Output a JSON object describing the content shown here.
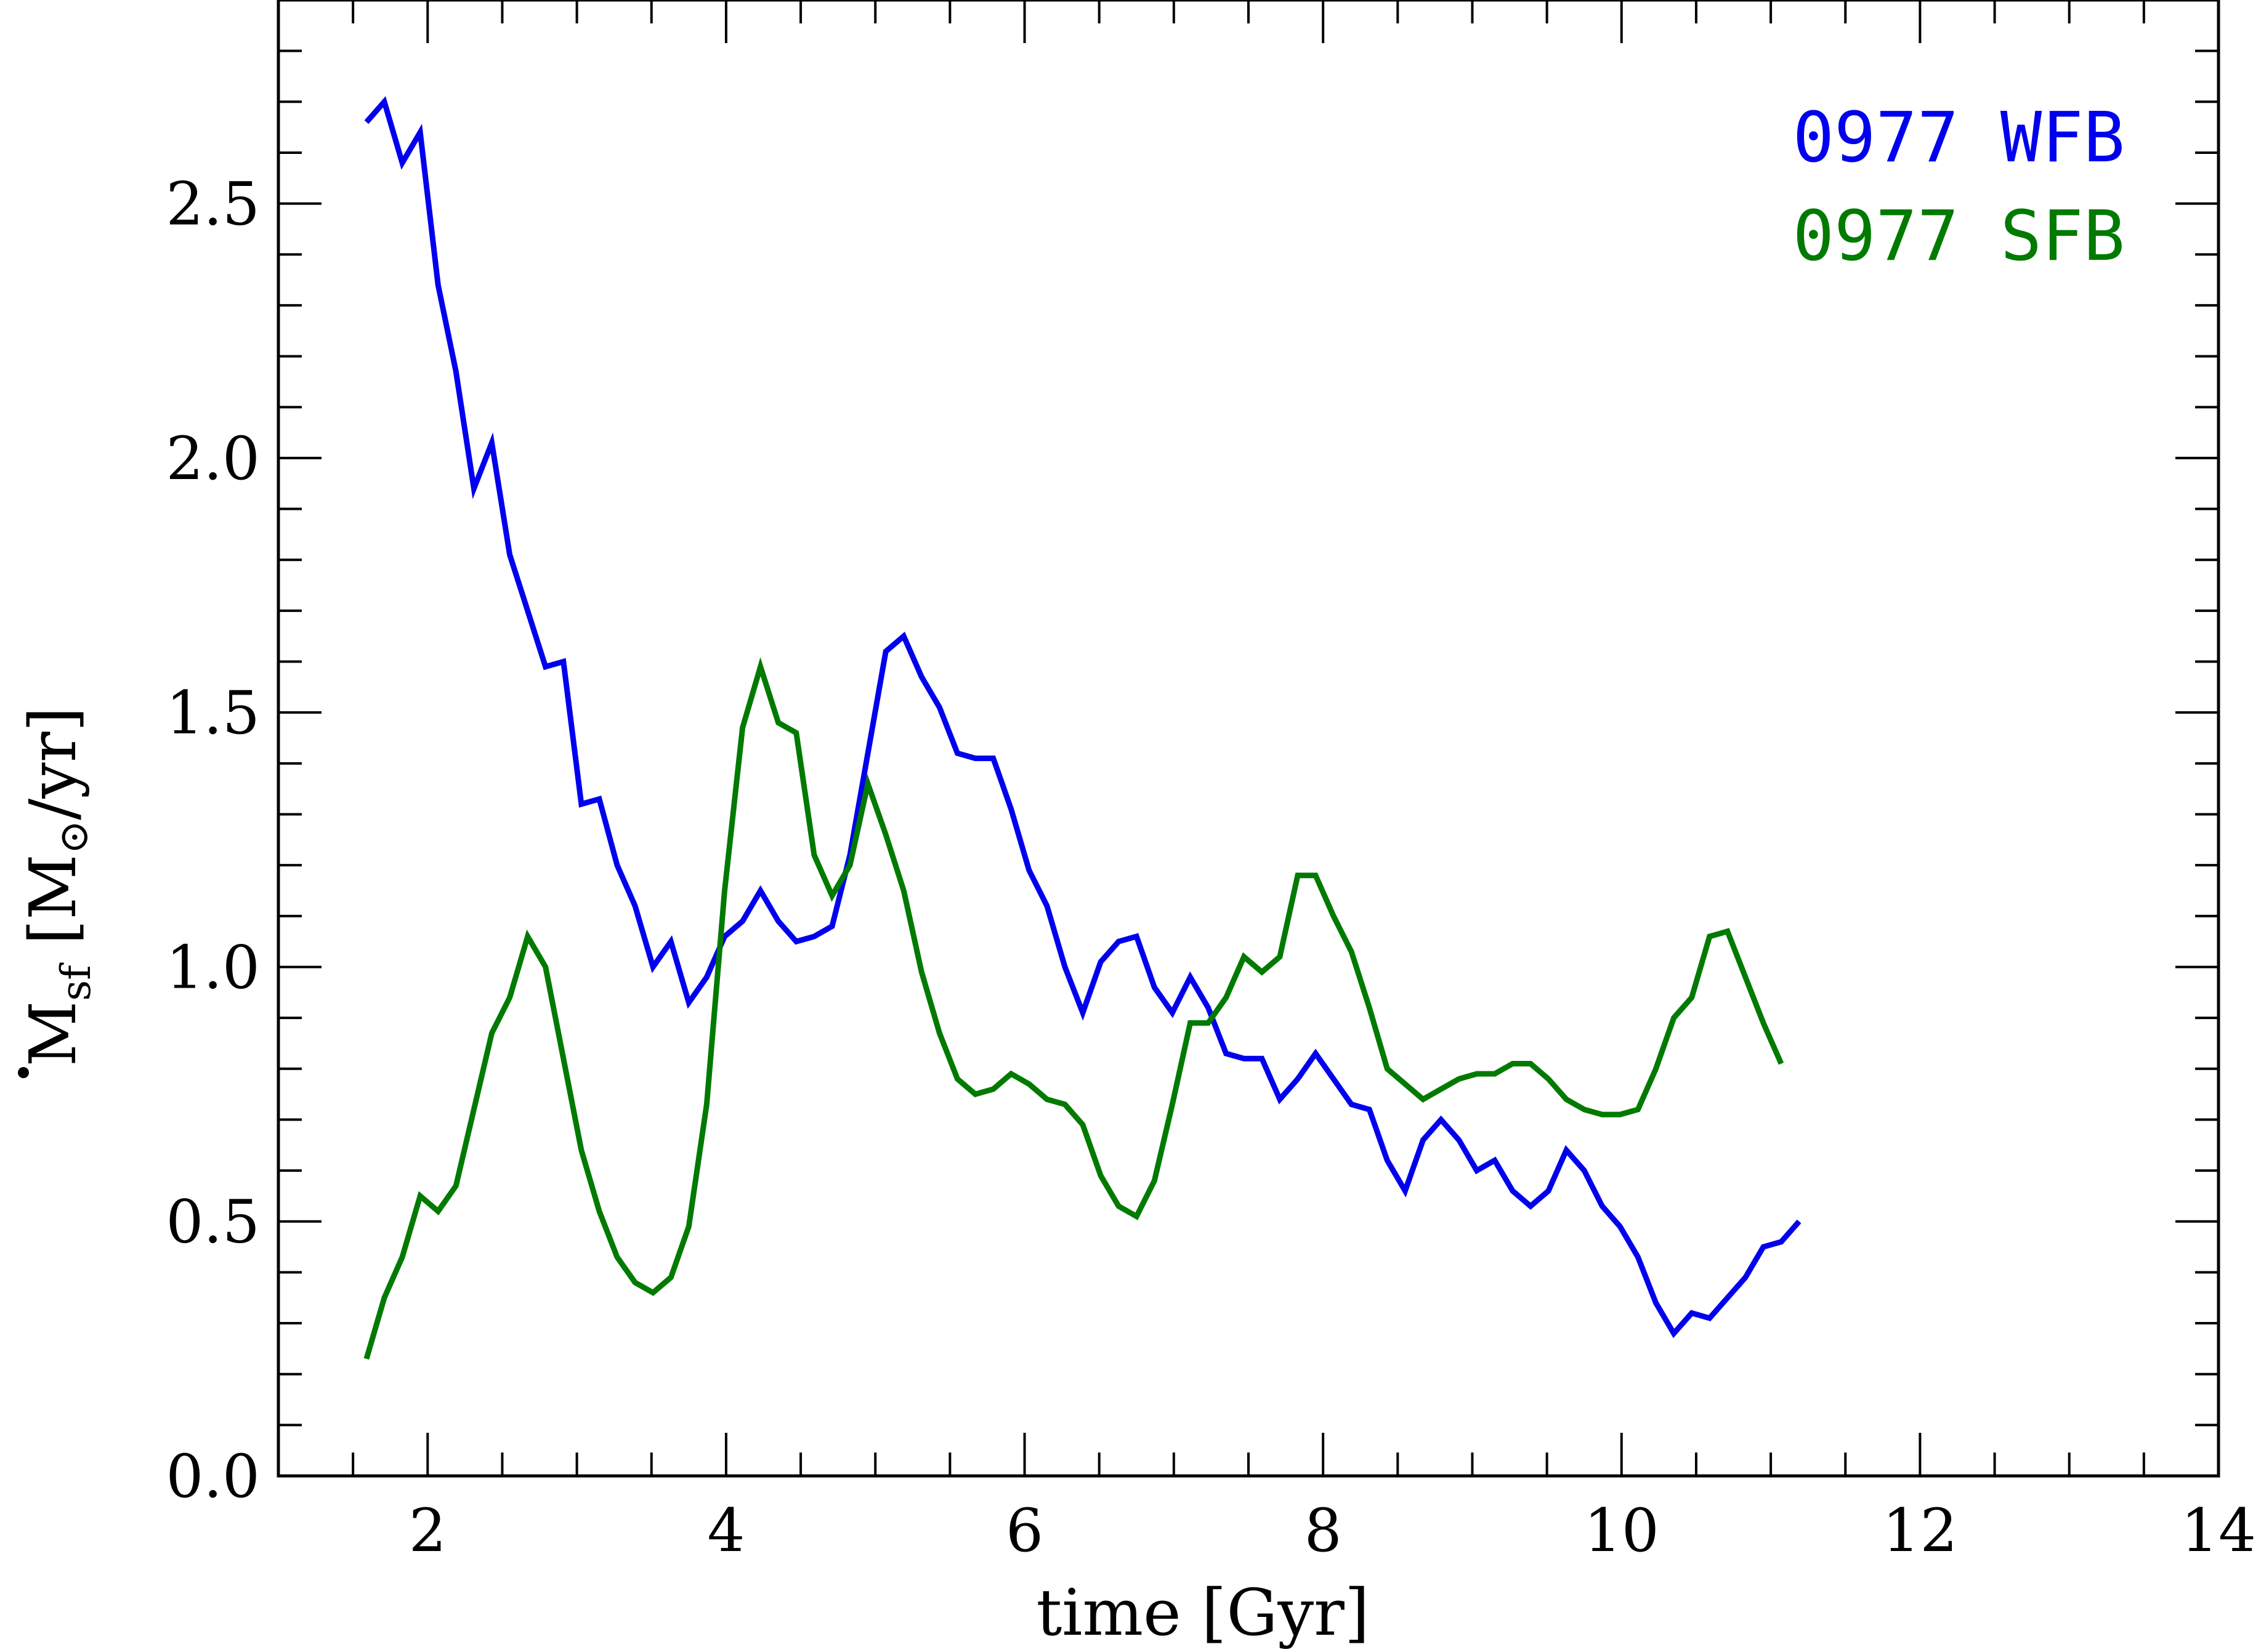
{
  "chart_data": {
    "type": "line",
    "xlabel": "time [Gyr]",
    "ylabel": {
      "symbol": "M",
      "subscript": "sf",
      "unit_open": " [M",
      "sun": "⊙",
      "unit_close": "/yr]"
    },
    "xlim": [
      1,
      14
    ],
    "ylim": [
      0,
      2.9
    ],
    "xticks": [
      2,
      4,
      6,
      8,
      10,
      12,
      14
    ],
    "yticks": [
      0.0,
      0.5,
      1.0,
      1.5,
      2.0,
      2.5
    ],
    "xtick_labels": [
      "2",
      "4",
      "6",
      "8",
      "10",
      "12",
      "14"
    ],
    "ytick_labels": [
      "0.0",
      "0.5",
      "1.0",
      "1.5",
      "2.0",
      "2.5"
    ],
    "x_minor_step": 0.5,
    "y_minor_step": 0.1,
    "grid": false,
    "legend_position": "top-right",
    "series": [
      {
        "name": "0977 WFB",
        "color": "#0000ee",
        "points": [
          [
            1.59,
            2.66
          ],
          [
            1.71,
            2.7
          ],
          [
            1.83,
            2.58
          ],
          [
            1.95,
            2.64
          ],
          [
            2.07,
            2.34
          ],
          [
            2.19,
            2.17
          ],
          [
            2.31,
            1.94
          ],
          [
            2.43,
            2.03
          ],
          [
            2.55,
            1.81
          ],
          [
            2.67,
            1.7
          ],
          [
            2.79,
            1.59
          ],
          [
            2.91,
            1.6
          ],
          [
            3.03,
            1.32
          ],
          [
            3.15,
            1.33
          ],
          [
            3.27,
            1.2
          ],
          [
            3.39,
            1.12
          ],
          [
            3.51,
            1.0
          ],
          [
            3.63,
            1.05
          ],
          [
            3.75,
            0.93
          ],
          [
            3.87,
            0.98
          ],
          [
            3.99,
            1.06
          ],
          [
            4.11,
            1.09
          ],
          [
            4.23,
            1.15
          ],
          [
            4.35,
            1.09
          ],
          [
            4.47,
            1.05
          ],
          [
            4.59,
            1.06
          ],
          [
            4.71,
            1.08
          ],
          [
            4.83,
            1.22
          ],
          [
            4.95,
            1.42
          ],
          [
            5.07,
            1.62
          ],
          [
            5.19,
            1.65
          ],
          [
            5.31,
            1.57
          ],
          [
            5.43,
            1.51
          ],
          [
            5.55,
            1.42
          ],
          [
            5.67,
            1.41
          ],
          [
            5.79,
            1.41
          ],
          [
            5.91,
            1.31
          ],
          [
            6.03,
            1.19
          ],
          [
            6.15,
            1.12
          ],
          [
            6.27,
            1.0
          ],
          [
            6.39,
            0.91
          ],
          [
            6.51,
            1.01
          ],
          [
            6.63,
            1.05
          ],
          [
            6.75,
            1.06
          ],
          [
            6.87,
            0.96
          ],
          [
            6.99,
            0.91
          ],
          [
            7.11,
            0.98
          ],
          [
            7.23,
            0.92
          ],
          [
            7.35,
            0.83
          ],
          [
            7.47,
            0.82
          ],
          [
            7.59,
            0.82
          ],
          [
            7.71,
            0.74
          ],
          [
            7.83,
            0.78
          ],
          [
            7.95,
            0.83
          ],
          [
            8.07,
            0.78
          ],
          [
            8.19,
            0.73
          ],
          [
            8.31,
            0.72
          ],
          [
            8.43,
            0.62
          ],
          [
            8.55,
            0.56
          ],
          [
            8.67,
            0.66
          ],
          [
            8.79,
            0.7
          ],
          [
            8.91,
            0.66
          ],
          [
            9.03,
            0.6
          ],
          [
            9.15,
            0.62
          ],
          [
            9.27,
            0.56
          ],
          [
            9.39,
            0.53
          ],
          [
            9.51,
            0.56
          ],
          [
            9.63,
            0.64
          ],
          [
            9.75,
            0.6
          ],
          [
            9.87,
            0.53
          ],
          [
            9.99,
            0.49
          ],
          [
            10.11,
            0.43
          ],
          [
            10.23,
            0.34
          ],
          [
            10.35,
            0.28
          ],
          [
            10.47,
            0.32
          ],
          [
            10.59,
            0.31
          ],
          [
            10.71,
            0.35
          ],
          [
            10.83,
            0.39
          ],
          [
            10.95,
            0.45
          ],
          [
            11.07,
            0.46
          ],
          [
            11.19,
            0.5
          ]
        ]
      },
      {
        "name": "0977 SFB",
        "color": "#007a00",
        "points": [
          [
            1.59,
            0.23
          ],
          [
            1.71,
            0.35
          ],
          [
            1.83,
            0.43
          ],
          [
            1.95,
            0.55
          ],
          [
            2.07,
            0.52
          ],
          [
            2.19,
            0.57
          ],
          [
            2.31,
            0.72
          ],
          [
            2.43,
            0.87
          ],
          [
            2.55,
            0.94
          ],
          [
            2.67,
            1.06
          ],
          [
            2.79,
            1.0
          ],
          [
            2.91,
            0.82
          ],
          [
            3.03,
            0.64
          ],
          [
            3.15,
            0.52
          ],
          [
            3.27,
            0.43
          ],
          [
            3.39,
            0.38
          ],
          [
            3.51,
            0.36
          ],
          [
            3.63,
            0.39
          ],
          [
            3.75,
            0.49
          ],
          [
            3.87,
            0.73
          ],
          [
            3.99,
            1.15
          ],
          [
            4.11,
            1.47
          ],
          [
            4.23,
            1.59
          ],
          [
            4.35,
            1.48
          ],
          [
            4.47,
            1.46
          ],
          [
            4.59,
            1.22
          ],
          [
            4.71,
            1.14
          ],
          [
            4.83,
            1.2
          ],
          [
            4.95,
            1.36
          ],
          [
            5.07,
            1.26
          ],
          [
            5.19,
            1.15
          ],
          [
            5.31,
            0.99
          ],
          [
            5.43,
            0.87
          ],
          [
            5.55,
            0.78
          ],
          [
            5.67,
            0.75
          ],
          [
            5.79,
            0.76
          ],
          [
            5.91,
            0.79
          ],
          [
            6.03,
            0.77
          ],
          [
            6.15,
            0.74
          ],
          [
            6.27,
            0.73
          ],
          [
            6.39,
            0.69
          ],
          [
            6.51,
            0.59
          ],
          [
            6.63,
            0.53
          ],
          [
            6.75,
            0.51
          ],
          [
            6.87,
            0.58
          ],
          [
            6.99,
            0.73
          ],
          [
            7.11,
            0.89
          ],
          [
            7.23,
            0.89
          ],
          [
            7.35,
            0.94
          ],
          [
            7.47,
            1.02
          ],
          [
            7.59,
            0.99
          ],
          [
            7.71,
            1.02
          ],
          [
            7.83,
            1.18
          ],
          [
            7.95,
            1.18
          ],
          [
            8.07,
            1.1
          ],
          [
            8.19,
            1.03
          ],
          [
            8.31,
            0.92
          ],
          [
            8.43,
            0.8
          ],
          [
            8.55,
            0.77
          ],
          [
            8.67,
            0.74
          ],
          [
            8.79,
            0.76
          ],
          [
            8.91,
            0.78
          ],
          [
            9.03,
            0.79
          ],
          [
            9.15,
            0.79
          ],
          [
            9.27,
            0.81
          ],
          [
            9.39,
            0.81
          ],
          [
            9.51,
            0.78
          ],
          [
            9.63,
            0.74
          ],
          [
            9.75,
            0.72
          ],
          [
            9.87,
            0.71
          ],
          [
            9.99,
            0.71
          ],
          [
            10.11,
            0.72
          ],
          [
            10.23,
            0.8
          ],
          [
            10.35,
            0.9
          ],
          [
            10.47,
            0.94
          ],
          [
            10.59,
            1.06
          ],
          [
            10.71,
            1.07
          ],
          [
            10.83,
            0.98
          ],
          [
            10.95,
            0.89
          ],
          [
            11.07,
            0.81
          ]
        ]
      }
    ]
  }
}
